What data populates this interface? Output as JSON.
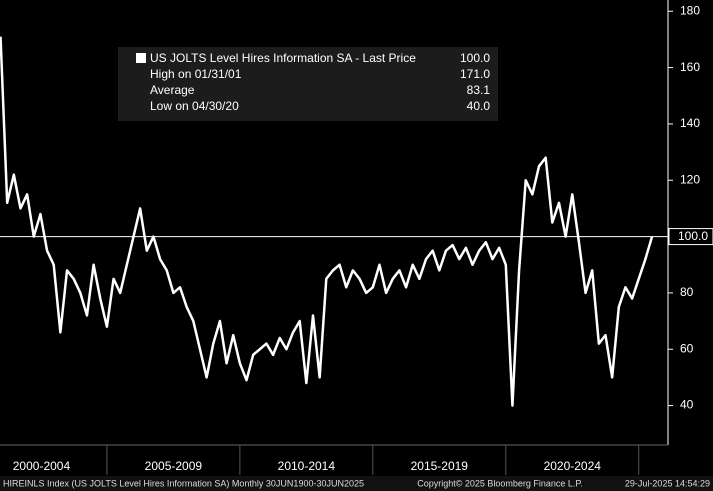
{
  "chart_data": {
    "type": "line",
    "series": [
      {
        "name": "US JOLTS Level Hires Information SA - Last Price",
        "color": "#ffffff",
        "x": [
          2001,
          2001.25,
          2001.5,
          2001.75,
          2002,
          2002.25,
          2002.5,
          2002.75,
          2003,
          2003.25,
          2003.5,
          2003.75,
          2004,
          2004.25,
          2004.5,
          2004.75,
          2005,
          2005.25,
          2005.5,
          2005.75,
          2006,
          2006.25,
          2006.5,
          2006.75,
          2007,
          2007.25,
          2007.5,
          2007.75,
          2008,
          2008.25,
          2008.5,
          2008.75,
          2009,
          2009.25,
          2009.5,
          2009.75,
          2010,
          2010.25,
          2010.5,
          2010.75,
          2011,
          2011.25,
          2011.5,
          2011.75,
          2012,
          2012.25,
          2012.5,
          2012.75,
          2013,
          2013.25,
          2013.5,
          2013.75,
          2014,
          2014.25,
          2014.5,
          2014.75,
          2015,
          2015.25,
          2015.5,
          2015.75,
          2016,
          2016.25,
          2016.5,
          2016.75,
          2017,
          2017.25,
          2017.5,
          2017.75,
          2018,
          2018.25,
          2018.5,
          2018.75,
          2019,
          2019.25,
          2019.5,
          2019.75,
          2020,
          2020.25,
          2020.5,
          2020.75,
          2021,
          2021.25,
          2021.5,
          2021.75,
          2022,
          2022.25,
          2022.5,
          2022.75,
          2023,
          2023.25,
          2023.5,
          2023.75,
          2024,
          2024.25,
          2024.5,
          2024.75,
          2025,
          2025.25,
          2025.5
        ],
        "values": [
          171,
          112,
          122,
          110,
          115,
          100,
          108,
          95,
          90,
          66,
          88,
          85,
          80,
          72,
          90,
          78,
          68,
          85,
          80,
          90,
          100,
          110,
          95,
          100,
          92,
          88,
          80,
          82,
          75,
          70,
          60,
          50,
          62,
          70,
          55,
          65,
          55,
          49,
          58,
          60,
          62,
          58,
          64,
          60,
          66,
          70,
          48,
          72,
          50,
          85,
          88,
          90,
          82,
          88,
          85,
          80,
          82,
          90,
          80,
          85,
          88,
          82,
          90,
          85,
          92,
          95,
          88,
          95,
          97,
          92,
          96,
          90,
          95,
          98,
          92,
          96,
          90,
          40,
          88,
          120,
          115,
          125,
          128,
          105,
          112,
          100,
          115,
          98,
          80,
          88,
          62,
          65,
          50,
          75,
          82,
          78,
          85,
          92,
          100
        ]
      }
    ],
    "last_price": {
      "value": 100,
      "label": "100.0"
    },
    "xlim": [
      2000.98,
      2026.1
    ],
    "ylim": [
      26,
      184
    ],
    "yticks": [
      40,
      60,
      80,
      100,
      120,
      140,
      160,
      180
    ],
    "period_labels": [
      "2000-2004",
      "2005-2009",
      "2010-2014",
      "2015-2019",
      "2020-2024"
    ],
    "legend": {
      "title": "US JOLTS Level Hires Information SA - Last Price",
      "title_value": "100.0",
      "rows": [
        {
          "label": "High on 01/31/01",
          "value": "171.0"
        },
        {
          "label": "Average",
          "value": "83.1"
        },
        {
          "label": "Low on 04/30/20",
          "value": "40.0"
        }
      ]
    },
    "footer": {
      "left": "HIREINLS Index (US JOLTS Level Hires Information SA)  Monthly 30JUN1900-30JUN2025",
      "center": "Copyright© 2025 Bloomberg Finance L.P.",
      "right": "29-Jul-2025 14:54:29"
    }
  }
}
